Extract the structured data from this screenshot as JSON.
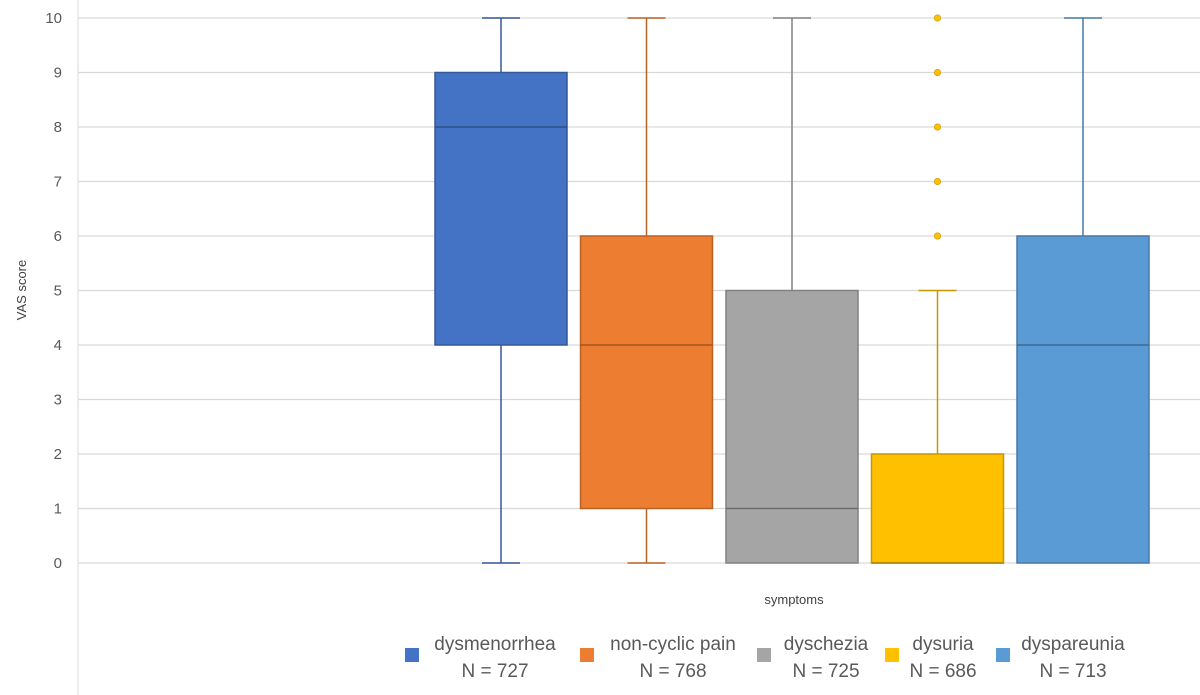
{
  "chart_data": {
    "type": "boxplot",
    "title": "",
    "xlabel": "symptoms",
    "ylabel": "VAS score",
    "ylim": [
      0,
      10
    ],
    "yticks": [
      0,
      1,
      2,
      3,
      4,
      5,
      6,
      7,
      8,
      9,
      10
    ],
    "grid": true,
    "legend_position": "bottom",
    "series": [
      {
        "name": "dysmenorrhea",
        "n_label": "N = 727",
        "color": "#4472C4",
        "whisker_low": 0,
        "q1": 4,
        "median": 8,
        "q3": 9,
        "whisker_high": 10,
        "outliers": []
      },
      {
        "name": "non-cyclic pain",
        "n_label": "N = 768",
        "color": "#ED7D31",
        "whisker_low": 0,
        "q1": 1,
        "median": 4,
        "q3": 6,
        "whisker_high": 10,
        "outliers": []
      },
      {
        "name": "dyschezia",
        "n_label": "N = 725",
        "color": "#A5A5A5",
        "whisker_low": 0,
        "q1": 0,
        "median": 1,
        "q3": 5,
        "whisker_high": 10,
        "outliers": []
      },
      {
        "name": "dysuria",
        "n_label": "N = 686",
        "color": "#FFC000",
        "whisker_low": 0,
        "q1": 0,
        "median": 0,
        "q3": 2,
        "whisker_high": 5,
        "outliers": [
          6,
          7,
          8,
          9,
          10
        ]
      },
      {
        "name": "dyspareunia",
        "n_label": "N = 713",
        "color": "#5B9BD5",
        "whisker_low": 0,
        "q1": 0,
        "median": 4,
        "q3": 6,
        "whisker_high": 10,
        "outliers": []
      }
    ]
  }
}
